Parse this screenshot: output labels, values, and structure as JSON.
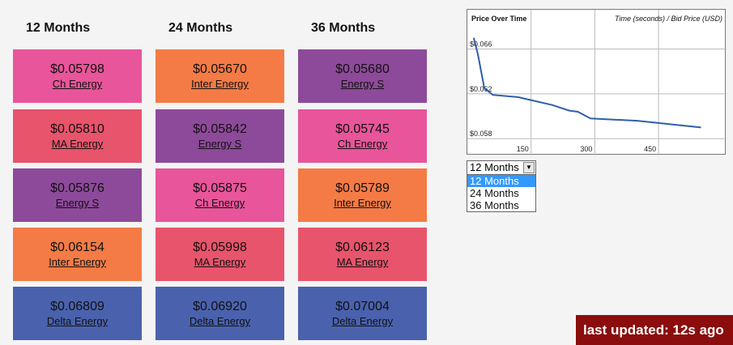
{
  "columns": [
    {
      "label": "12 Months",
      "offers": [
        {
          "price": "$0.05798",
          "supplier": "Ch Energy",
          "color": "#e8559a"
        },
        {
          "price": "$0.05810",
          "supplier": "MA Energy",
          "color": "#e8546b"
        },
        {
          "price": "$0.05876",
          "supplier": "Energy S",
          "color": "#8e4a9a"
        },
        {
          "price": "$0.06154",
          "supplier": "Inter Energy",
          "color": "#f47b46"
        },
        {
          "price": "$0.06809",
          "supplier": "Delta Energy",
          "color": "#4a62ad"
        }
      ]
    },
    {
      "label": "24 Months",
      "offers": [
        {
          "price": "$0.05670",
          "supplier": "Inter Energy",
          "color": "#f47b46"
        },
        {
          "price": "$0.05842",
          "supplier": "Energy S",
          "color": "#8e4a9a"
        },
        {
          "price": "$0.05875",
          "supplier": "Ch Energy",
          "color": "#e8559a"
        },
        {
          "price": "$0.05998",
          "supplier": "MA Energy",
          "color": "#e8546b"
        },
        {
          "price": "$0.06920",
          "supplier": "Delta Energy",
          "color": "#4a62ad"
        }
      ]
    },
    {
      "label": "36 Months",
      "offers": [
        {
          "price": "$0.05680",
          "supplier": "Energy S",
          "color": "#8e4a9a"
        },
        {
          "price": "$0.05745",
          "supplier": "Ch Energy",
          "color": "#e8559a"
        },
        {
          "price": "$0.05789",
          "supplier": "Inter Energy",
          "color": "#f47b46"
        },
        {
          "price": "$0.06123",
          "supplier": "MA Energy",
          "color": "#e8546b"
        },
        {
          "price": "$0.07004",
          "supplier": "Delta Energy",
          "color": "#4a62ad"
        }
      ]
    }
  ],
  "chart_data": {
    "type": "line",
    "title": "Price Over Time",
    "subtitle": "Time (seconds) / Bid Price (USD)",
    "xlabel": "",
    "ylabel": "",
    "x_ticks": [
      150,
      300,
      450
    ],
    "y_ticks": [
      0.058,
      0.062,
      0.066
    ],
    "y_tick_labels": [
      "$0.058",
      "$0.062",
      "$0.066"
    ],
    "xlim": [
      0,
      610
    ],
    "ylim": [
      0.0565,
      0.0695
    ],
    "grid": true,
    "line_color": "#2f5fa8",
    "series": [
      {
        "x": [
          15,
          25,
          40,
          60,
          120,
          200,
          240,
          260,
          290,
          400,
          550
        ],
        "y": [
          0.067,
          0.0655,
          0.0625,
          0.0619,
          0.0617,
          0.061,
          0.0605,
          0.0604,
          0.0598,
          0.0596,
          0.059
        ]
      }
    ]
  },
  "term_select": {
    "value": "12 Months",
    "options": [
      "12 Months",
      "24 Months",
      "36 Months"
    ],
    "selected_index": 0
  },
  "status": {
    "last_updated": "last updated: 12s ago"
  }
}
